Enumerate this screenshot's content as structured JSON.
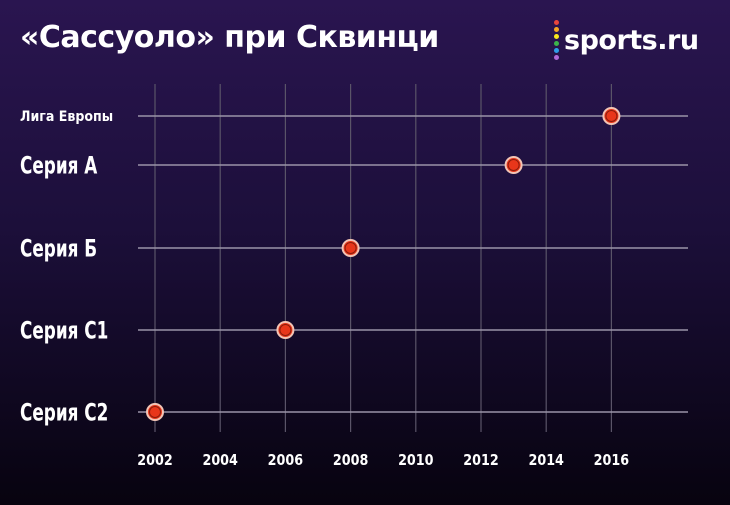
{
  "title": "«Сассуоло» при Сквинци",
  "brand": {
    "name": "sports.ru",
    "dot_colors": [
      "#e8453c",
      "#f5a623",
      "#f8e71c",
      "#3cb44b",
      "#2f9ee8",
      "#b06ad9"
    ]
  },
  "colors": {
    "marker_fill": "#e8361a",
    "marker_ring": "#f3c4b5",
    "line": "#9a93a8",
    "grid": "#5a5468"
  },
  "chart_data": {
    "type": "scatter",
    "title": "«Сассуоло» при Сквинци",
    "xlabel": "",
    "ylabel": "",
    "x_ticks": [
      2002,
      2004,
      2006,
      2008,
      2010,
      2012,
      2014,
      2016
    ],
    "xlim": [
      2002,
      2018
    ],
    "grid": true,
    "categories": [
      "Лига Европы",
      "Серия А",
      "Серия Б",
      "Серия С1",
      "Серия С2"
    ],
    "points": [
      {
        "category": "Лига Европы",
        "x": 2016
      },
      {
        "category": "Серия А",
        "x": 2013
      },
      {
        "category": "Серия Б",
        "x": 2008
      },
      {
        "category": "Серия С1",
        "x": 2006
      },
      {
        "category": "Серия С2",
        "x": 2002
      }
    ]
  }
}
